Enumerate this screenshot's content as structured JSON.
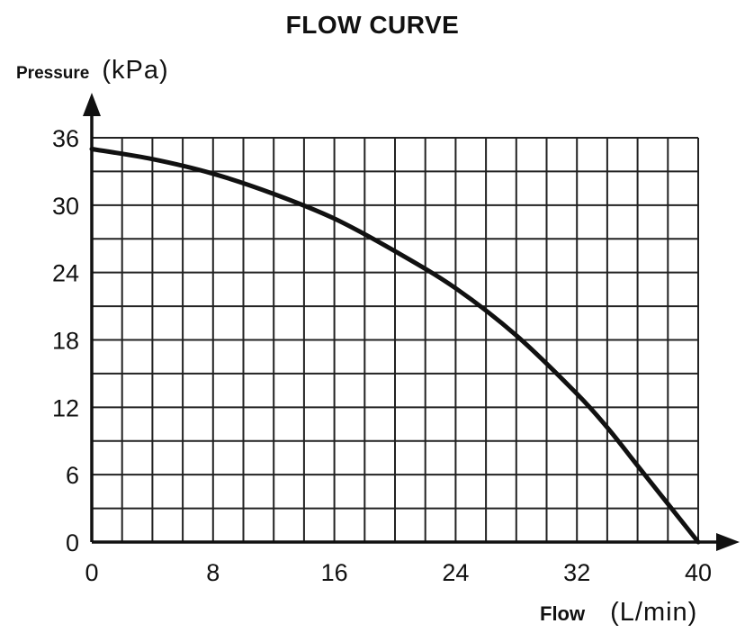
{
  "chart_data": {
    "type": "line",
    "title": "FLOW CURVE",
    "ylabel": "Pressure",
    "yunit": "(kPa)",
    "xlabel": "Flow",
    "xunit": "(L/min)",
    "xlim": [
      0,
      40
    ],
    "ylim": [
      0,
      36
    ],
    "x_ticks": [
      0,
      8,
      16,
      24,
      32,
      40
    ],
    "y_ticks": [
      0,
      6,
      12,
      18,
      24,
      30,
      36
    ],
    "grid": true,
    "series": [
      {
        "x": [
          0,
          4,
          8,
          12,
          16,
          20,
          24,
          28,
          32,
          34,
          36,
          38,
          40
        ],
        "y": [
          35,
          34.1,
          32.8,
          31,
          28.8,
          25.9,
          22.6,
          18.4,
          13.2,
          10.2,
          6.8,
          3.4,
          0
        ]
      }
    ],
    "line_color": "#111111"
  }
}
